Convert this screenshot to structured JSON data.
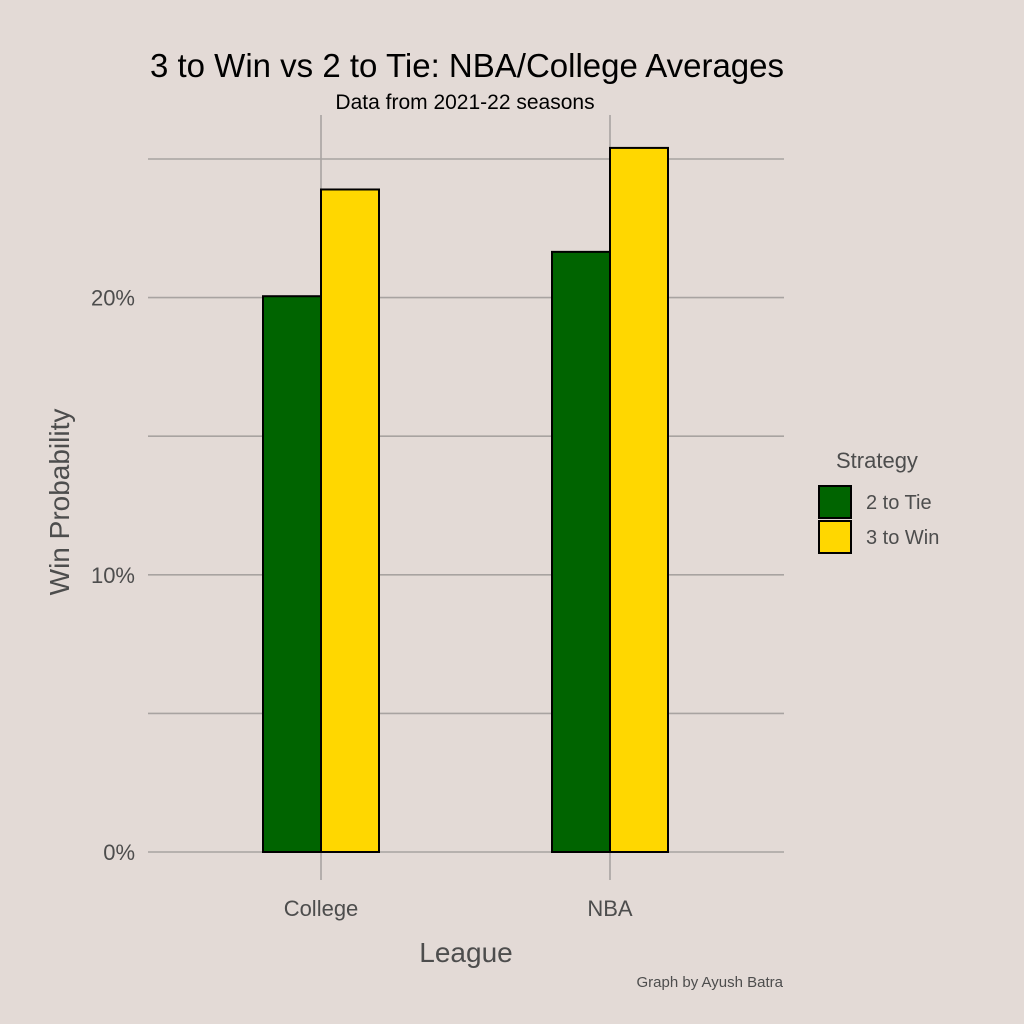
{
  "chart_data": {
    "type": "bar",
    "title": "3 to Win vs 2 to Tie: NBA/College Averages",
    "subtitle": "Data from 2021-22 seasons",
    "xlabel": "League",
    "ylabel": "Win Probability",
    "caption": "Graph by Ayush Batra",
    "categories": [
      "College",
      "NBA"
    ],
    "series": [
      {
        "name": "2 to Tie",
        "values": [
          0.2005,
          0.2165
        ],
        "color": "#006400"
      },
      {
        "name": "3 to Win",
        "values": [
          0.239,
          0.254
        ],
        "color": "#ffd700"
      }
    ],
    "ylim": [
      0,
      0.25
    ],
    "y_ticks": [
      0,
      0.1,
      0.2
    ],
    "y_tick_labels": [
      "0%",
      "10%",
      "20%"
    ],
    "y_minor_ticks": [
      0.05,
      0.15,
      0.25
    ],
    "grid": true,
    "legend": {
      "title": "Strategy",
      "position": "right"
    },
    "background": "#e3dad6"
  }
}
